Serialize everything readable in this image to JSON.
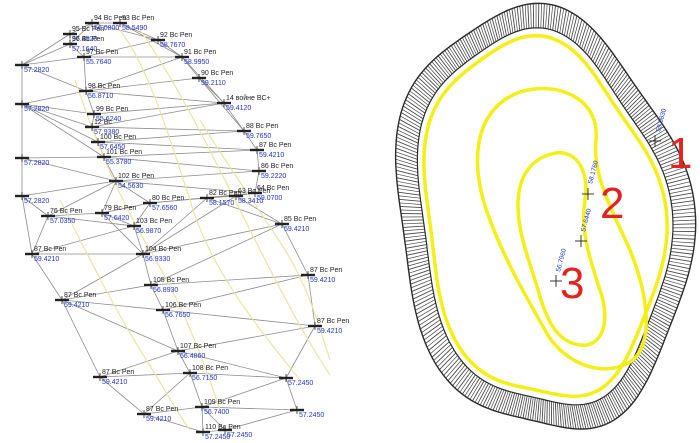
{
  "colors": {
    "tin_edge": "#8c8c8c",
    "contour_light": "#e8e6a6",
    "contour_yellow": "#f4ef16",
    "hachure": "#4a4a4a",
    "outline": "#2b2b2b",
    "elevation_text": "#2233cc",
    "callout_red": "#e4221e"
  },
  "left_panel": {
    "points": [
      {
        "name": "94 Bc Pen",
        "elev": "56.0800"
      },
      {
        "name": "93 Bc Pen",
        "elev": "58.5490"
      },
      {
        "name": "95 Bc Pen",
        "elev": "57.4520"
      },
      {
        "name": "96 Bc Pen",
        "elev": "57.1640"
      },
      {
        "name": "92 Bc Pen",
        "elev": "58.7670"
      },
      {
        "name": "97 Bc Pen",
        "elev": "55.7640"
      },
      {
        "name": "91 Bc Pen",
        "elev": "58.9950"
      },
      {
        "name": "",
        "elev": "57.2820"
      },
      {
        "name": "90 Bc Pen",
        "elev": "59.2110"
      },
      {
        "name": "98 Bc Pen",
        "elev": "56.8710"
      },
      {
        "name": "14 войне BC+",
        "elev": "59.4120"
      },
      {
        "name": "",
        "elev": "57.2820"
      },
      {
        "name": "99 Bc Pen",
        "elev": "55.6240"
      },
      {
        "name": "12 Bc",
        "elev": "57.9380"
      },
      {
        "name": "88 Bc Pen",
        "elev": "59.7650"
      },
      {
        "name": "100 Bc Pen",
        "elev": "57.6450"
      },
      {
        "name": "87 Bc Pen",
        "elev": "59.4210"
      },
      {
        "name": "101 Bc Pen",
        "elev": "55.3780"
      },
      {
        "name": "",
        "elev": "57.2820"
      },
      {
        "name": "86 Bc Pen",
        "elev": "59.2220"
      },
      {
        "name": "102 Bc Pen",
        "elev": "54.5630"
      },
      {
        "name": "64 Bc Pen",
        "elev": "59.0700"
      },
      {
        "name": "",
        "elev": "57.2820"
      },
      {
        "name": "76 Bc Pen",
        "elev": "57.0350"
      },
      {
        "name": "79 Bc Pen",
        "elev": "57.6420"
      },
      {
        "name": "80 Bc Pen",
        "elev": "57.6560"
      },
      {
        "name": "82 Bc Pen",
        "elev": "58.1570"
      },
      {
        "name": "63 Bc Pen",
        "elev": "58.3410"
      },
      {
        "name": "85 Bc Pen",
        "elev": "59.4210"
      },
      {
        "name": "103 Bc Pen",
        "elev": "56.9870"
      },
      {
        "name": "87 Bc Pen",
        "elev": "59.4210"
      },
      {
        "name": "104 Bc Pen",
        "elev": "56.9330"
      },
      {
        "name": "87 Bc Pen",
        "elev": "59.4210"
      },
      {
        "name": "105 Bc Pen",
        "elev": "56.8930"
      },
      {
        "name": "87 Bc Pen",
        "elev": "59.4210"
      },
      {
        "name": "106 Bc Pen",
        "elev": "56.7650"
      },
      {
        "name": "87 Bc Pen",
        "elev": "59.4210"
      },
      {
        "name": "107 Bc Pen",
        "elev": "56.4860"
      },
      {
        "name": "87 Bc Pen",
        "elev": "59.4210"
      },
      {
        "name": "108 Bc Pen",
        "elev": "56.7150"
      },
      {
        "name": "",
        "elev": "57.2450"
      },
      {
        "name": "109 Bc Pen",
        "elev": "56.7400"
      },
      {
        "name": "",
        "elev": "57.2450"
      },
      {
        "name": "87 Bc Pen",
        "elev": "59.4210"
      },
      {
        "name": "110 Bc Pen",
        "elev": "57.2450"
      },
      {
        "name": "",
        "elev": "57.2450"
      }
    ]
  },
  "right_panel": {
    "callouts": [
      {
        "num": "1",
        "elev": "59.0830"
      },
      {
        "num": "2",
        "elev": "58.1760"
      },
      {
        "num": "3",
        "elev": "57.6440"
      },
      {
        "num": "",
        "elev": "56.7960"
      }
    ]
  }
}
